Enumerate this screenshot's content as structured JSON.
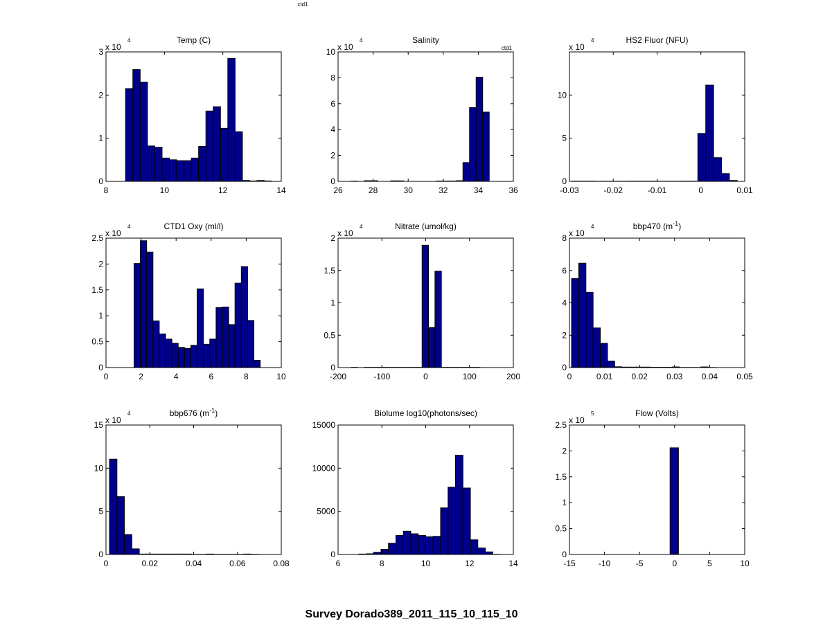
{
  "figure": {
    "header": "ctd1",
    "suptitle": "Survey Dorado389_2011_115_10_115_10"
  },
  "colors": {
    "bar_fill": "#00008B",
    "bar_edge": "#000000",
    "axis": "#000000",
    "background": "#ffffff"
  },
  "chart_data": [
    {
      "type": "bar",
      "title": "Temp (C)",
      "title_sup": "",
      "title_tail": "",
      "multiplier": "x 10",
      "multiplier_exp": "4",
      "note": "",
      "xlim": [
        8,
        14
      ],
      "xticks": [
        "8",
        "10",
        "12",
        "14"
      ],
      "ylim": [
        0,
        3
      ],
      "yticks": [
        "0",
        "1",
        "2",
        "3"
      ],
      "bin_start": 8.67,
      "bin_width": 0.25,
      "values": [
        2.15,
        2.59,
        2.3,
        0.82,
        0.79,
        0.54,
        0.5,
        0.48,
        0.48,
        0.54,
        0.81,
        1.63,
        1.73,
        1.23,
        2.85,
        1.15,
        0.02,
        0.01,
        0.02,
        0.01
      ]
    },
    {
      "type": "bar",
      "title": "Salinity",
      "title_sup": "",
      "title_tail": "",
      "multiplier": "x 10",
      "multiplier_exp": "4",
      "note": "ctd1",
      "xlim": [
        26,
        36
      ],
      "xticks": [
        "26",
        "28",
        "30",
        "32",
        "34",
        "36"
      ],
      "ylim": [
        0,
        10
      ],
      "yticks": [
        "0",
        "2",
        "4",
        "6",
        "8",
        "10"
      ],
      "bin_start": 26.75,
      "bin_width": 0.375,
      "values": [
        0.02,
        0,
        0.05,
        0.05,
        0,
        0,
        0.04,
        0.04,
        0,
        0,
        0,
        0,
        0,
        0.03,
        0.03,
        0.03,
        0.05,
        1.45,
        5.7,
        8.05,
        5.35
      ]
    },
    {
      "type": "bar",
      "title": "HS2 Fluor (NFU)",
      "title_sup": "",
      "title_tail": "",
      "multiplier": "x 10",
      "multiplier_exp": "4",
      "note": "",
      "xlim": [
        -0.03,
        0.01
      ],
      "xticks": [
        "-0.03",
        "-0.02",
        "-0.01",
        "0",
        "0.01"
      ],
      "ylim": [
        0,
        15
      ],
      "yticks": [
        "0",
        "5",
        "10"
      ],
      "bin_start": -0.0295,
      "bin_width": 0.0018,
      "values": [
        0.03,
        0.03,
        0.03,
        0.02,
        0.02,
        0.02,
        0.02,
        0.03,
        0.03,
        0.03,
        0.03,
        0.02,
        0.02,
        0.02,
        0.03,
        0.03,
        5.55,
        11.15,
        2.75,
        0.9,
        0.1
      ]
    },
    {
      "type": "bar",
      "title": "CTD1 Oxy (ml/l)",
      "title_sup": "",
      "title_tail": "",
      "multiplier": "x 10",
      "multiplier_exp": "4",
      "note": "",
      "xlim": [
        0,
        10
      ],
      "xticks": [
        "0",
        "2",
        "4",
        "6",
        "8",
        "10"
      ],
      "ylim": [
        0,
        2.5
      ],
      "yticks": [
        "0",
        "0.5",
        "1",
        "1.5",
        "2",
        "2.5"
      ],
      "bin_start": 1.6,
      "bin_width": 0.36,
      "values": [
        2.01,
        2.45,
        2.23,
        0.9,
        0.65,
        0.55,
        0.47,
        0.39,
        0.37,
        0.43,
        1.52,
        0.45,
        0.55,
        1.16,
        1.17,
        0.83,
        1.63,
        1.95,
        0.91,
        0.14
      ]
    },
    {
      "type": "bar",
      "title": "Nitrate (umol/kg)",
      "title_sup": "",
      "title_tail": "",
      "multiplier": "x 10",
      "multiplier_exp": "4",
      "note": "",
      "xlim": [
        -200,
        200
      ],
      "xticks": [
        "-200",
        "-100",
        "0",
        "100",
        "200"
      ],
      "ylim": [
        0,
        2
      ],
      "yticks": [
        "0",
        "0.5",
        "1",
        "1.5",
        "2"
      ],
      "bin_start": -170,
      "bin_width": 14.7,
      "values": [
        0.004,
        0,
        0.004,
        0.004,
        0.004,
        0.004,
        0.004,
        0.004,
        0.004,
        0.004,
        0.004,
        1.89,
        0.62,
        1.49,
        0.004,
        0.004,
        0.004,
        0.004,
        0.004,
        0.004
      ]
    },
    {
      "type": "bar",
      "title": "bbp470 (m",
      "title_sup": "-1",
      "title_tail": ")",
      "multiplier": "x 10",
      "multiplier_exp": "4",
      "note": "",
      "xlim": [
        0,
        0.05
      ],
      "xticks": [
        "0",
        "0.01",
        "0.02",
        "0.03",
        "0.04",
        "0.05"
      ],
      "ylim": [
        0,
        8
      ],
      "yticks": [
        "0",
        "2",
        "4",
        "6",
        "8"
      ],
      "bin_start": 0.0006,
      "bin_width": 0.00205,
      "values": [
        5.5,
        6.45,
        4.65,
        2.45,
        1.5,
        0.4,
        0.05,
        0.03,
        0.03,
        0.03,
        0.03,
        0.02,
        0.02,
        0.02,
        0.04,
        0.01,
        0.01,
        0.01,
        0.04,
        0.01
      ]
    },
    {
      "type": "bar",
      "title": "bbp676 (m",
      "title_sup": "-1",
      "title_tail": ")",
      "multiplier": "x 10",
      "multiplier_exp": "4",
      "note": "",
      "xlim": [
        0,
        0.08
      ],
      "xticks": [
        "0",
        "0.02",
        "0.04",
        "0.06",
        "0.08"
      ],
      "ylim": [
        0,
        15
      ],
      "yticks": [
        "0",
        "5",
        "10",
        "15"
      ],
      "bin_start": 0.0016,
      "bin_width": 0.0034,
      "values": [
        11.05,
        6.7,
        2.3,
        0.65,
        0.05,
        0.05,
        0.05,
        0.05,
        0.05,
        0.05,
        0.05,
        0.02,
        0.02,
        0.05,
        0.02,
        0.02,
        0.02,
        0.02,
        0.05,
        0.02
      ]
    },
    {
      "type": "bar",
      "title": "Biolume log10(photons/sec)",
      "title_sup": "",
      "title_tail": "",
      "multiplier": "",
      "multiplier_exp": "",
      "note": "",
      "xlim": [
        6,
        14
      ],
      "xticks": [
        "6",
        "8",
        "10",
        "12",
        "14"
      ],
      "ylim": [
        0,
        15000
      ],
      "yticks": [
        "0",
        "5000",
        "10000",
        "15000"
      ],
      "bin_start": 6.6,
      "bin_width": 0.34,
      "values": [
        0,
        50,
        80,
        250,
        600,
        1300,
        2200,
        2700,
        2400,
        2200,
        2050,
        2100,
        5400,
        7800,
        11500,
        7700,
        1700,
        750,
        300,
        20
      ]
    },
    {
      "type": "bar",
      "title": "Flow (Volts)",
      "title_sup": "",
      "title_tail": "",
      "multiplier": "x 10",
      "multiplier_exp": "5",
      "note": "",
      "xlim": [
        -15,
        10
      ],
      "xticks": [
        "-15",
        "-10",
        "-5",
        "0",
        "5",
        "10"
      ],
      "ylim": [
        0,
        2.5
      ],
      "yticks": [
        "0",
        "0.5",
        "1",
        "1.5",
        "2",
        "2.5"
      ],
      "bin_start": -0.65,
      "bin_width": 1.2,
      "values": [
        2.06
      ]
    }
  ]
}
